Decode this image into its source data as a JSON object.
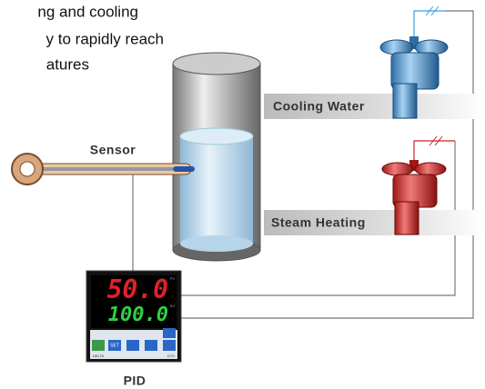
{
  "intro": {
    "lines": [
      "ng and cooling",
      "y to rapidly reach",
      "atures"
    ]
  },
  "labels": {
    "cooling": "Cooling Water",
    "steam": "Steam Heating",
    "sensor": "Sensor",
    "pid": "PID"
  },
  "controller": {
    "pv": "50.0",
    "sv": "100.0",
    "pv_tag": "PV",
    "sv_tag": "SV",
    "set": "SET",
    "brand": "DELTA",
    "model": "DTV"
  }
}
